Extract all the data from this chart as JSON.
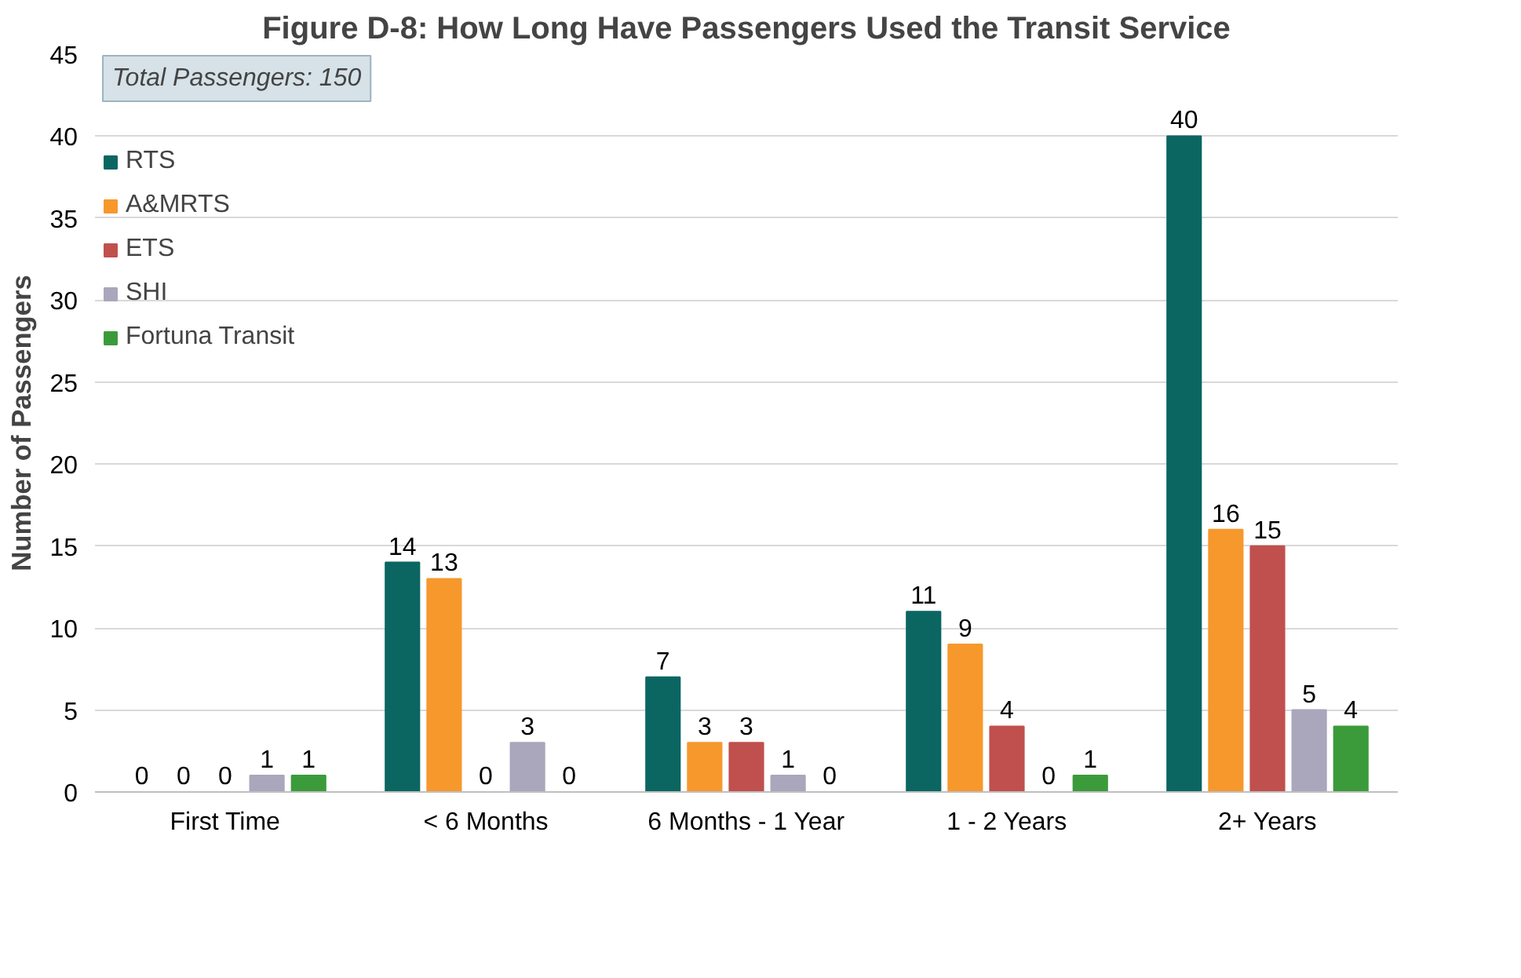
{
  "chart_data": {
    "type": "bar",
    "title": "Figure D-8: How Long Have Passengers Used the Transit Service",
    "ylabel": "Number of Passengers",
    "categories": [
      "First Time",
      "< 6 Months",
      "6 Months - 1 Year",
      "1 - 2 Years",
      "2+ Years"
    ],
    "series": [
      {
        "name": "RTS",
        "color": "#0b6662",
        "values": [
          0,
          14,
          7,
          11,
          40
        ]
      },
      {
        "name": "A&MRTS",
        "color": "#f7982d",
        "values": [
          0,
          13,
          3,
          9,
          16
        ]
      },
      {
        "name": "ETS",
        "color": "#c0504d",
        "values": [
          0,
          0,
          3,
          4,
          15
        ]
      },
      {
        "name": "SHI",
        "color": "#aaa6bc",
        "values": [
          1,
          3,
          1,
          0,
          5
        ]
      },
      {
        "name": "Fortuna Transit",
        "color": "#3b9b3b",
        "values": [
          1,
          0,
          0,
          1,
          4
        ]
      }
    ],
    "ylim": [
      0,
      45
    ],
    "yticks": [
      0,
      5,
      10,
      15,
      20,
      25,
      30,
      35,
      40,
      45
    ],
    "grid": "y",
    "legend": "top left",
    "data_labels": true,
    "annotations": [
      "Total Passengers: 150"
    ]
  }
}
